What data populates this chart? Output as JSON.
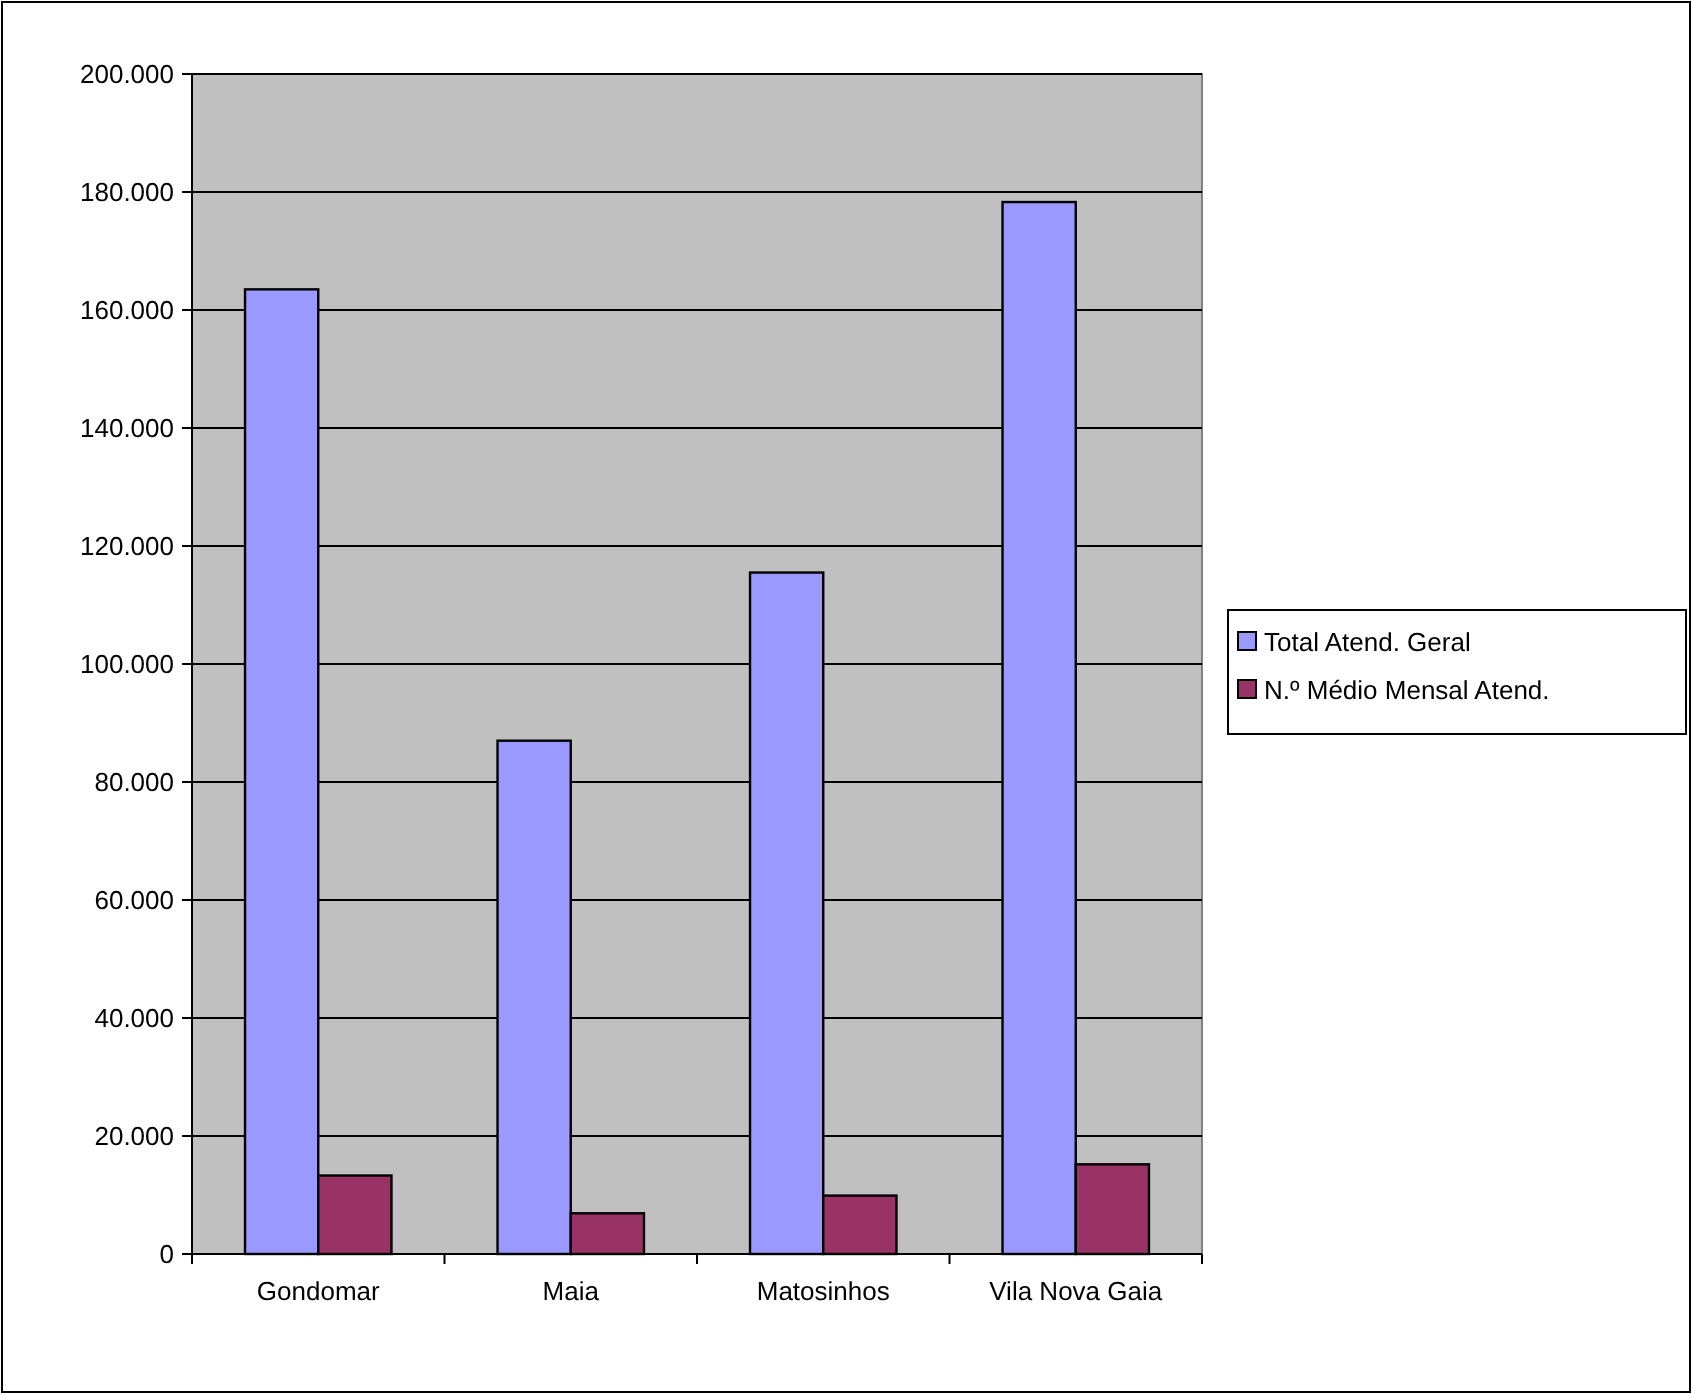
{
  "chart_data": {
    "type": "bar",
    "categories": [
      "Gondomar",
      "Maia",
      "Matosinhos",
      "Vila Nova Gaia"
    ],
    "series": [
      {
        "name": "Total Atend. Geral",
        "color": "#9999ff",
        "values": [
          163500,
          87000,
          115500,
          178300
        ]
      },
      {
        "name": "N.º Médio Mensal Atend.",
        "color": "#993366",
        "values": [
          13300,
          6900,
          9900,
          15200
        ]
      }
    ],
    "ylim": [
      0,
      200000
    ],
    "yticks": [
      0,
      {
        "value": 20000,
        "label": "20.000"
      },
      {
        "value": 40000,
        "label": "40.000"
      },
      {
        "value": 60000,
        "label": "60.000"
      },
      {
        "value": 80000,
        "label": "80.000"
      },
      {
        "value": 100000,
        "label": "100.000"
      },
      {
        "value": 120000,
        "label": "120.000"
      },
      {
        "value": 140000,
        "label": "140.000"
      },
      {
        "value": 160000,
        "label": "160.000"
      },
      {
        "value": 180000,
        "label": "180.000"
      },
      {
        "value": 200000,
        "label": "200.000"
      }
    ],
    "grid": "y",
    "legend": "right"
  }
}
